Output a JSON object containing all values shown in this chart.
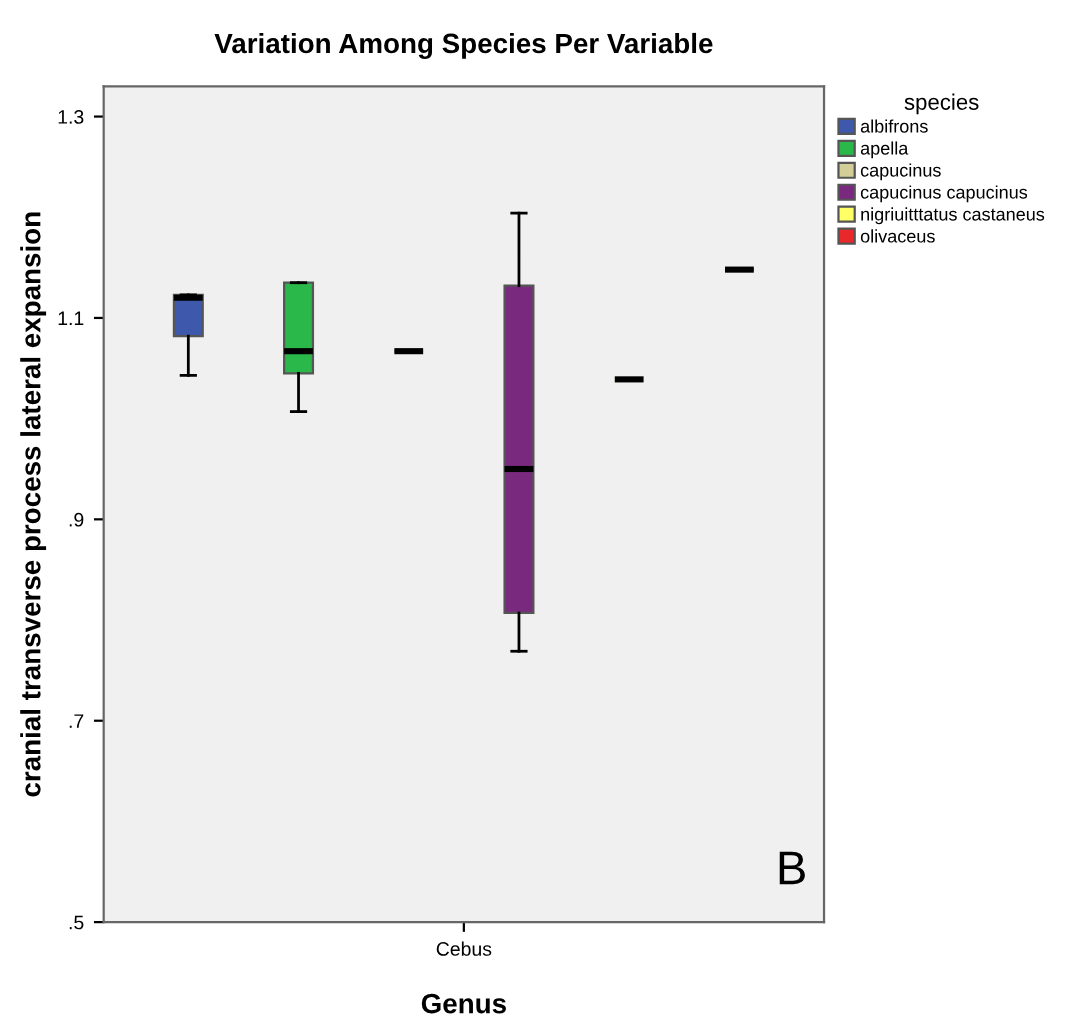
{
  "chart_data": {
    "type": "box",
    "title": "Variation Among Species Per Variable",
    "xlabel": "Genus",
    "ylabel": "cranial transverse process lateral expansion",
    "legend_title": "species",
    "categories": [
      "Cebus"
    ],
    "series": [
      {
        "name": "albifrons",
        "color": "#3e58ac",
        "boxes": [
          {
            "low": 1.043,
            "q1": 1.082,
            "median": 1.12,
            "q3": 1.123,
            "high": 1.123
          }
        ]
      },
      {
        "name": "apella",
        "color": "#2bb84a",
        "boxes": [
          {
            "low": 1.007,
            "q1": 1.045,
            "median": 1.067,
            "q3": 1.135,
            "high": 1.135
          }
        ]
      },
      {
        "name": "capucinus",
        "color": "#d3ce97",
        "boxes": [
          {
            "low": 1.067,
            "q1": 1.067,
            "median": 1.067,
            "q3": 1.067,
            "high": 1.067
          }
        ]
      },
      {
        "name": "capucinus capucinus",
        "color": "#7a2a7e",
        "boxes": [
          {
            "low": 0.769,
            "q1": 0.807,
            "median": 0.95,
            "q3": 1.132,
            "high": 1.204
          }
        ]
      },
      {
        "name": "nigriuitttatus castaneus",
        "color": "#ffff66",
        "boxes": [
          {
            "low": 1.039,
            "q1": 1.039,
            "median": 1.039,
            "q3": 1.039,
            "high": 1.039
          }
        ]
      },
      {
        "name": "olivaceus",
        "color": "#e8282a",
        "boxes": [
          {
            "low": 1.148,
            "q1": 1.148,
            "median": 1.148,
            "q3": 1.148,
            "high": 1.148
          }
        ]
      }
    ],
    "ylim": [
      0.5,
      1.33
    ],
    "yticks": [
      {
        "value": 0.5,
        "label": ".5"
      },
      {
        "value": 0.7,
        "label": ".7"
      },
      {
        "value": 0.9,
        "label": ".9"
      },
      {
        "value": 1.1,
        "label": "1.1"
      },
      {
        "value": 1.3,
        "label": "1.3"
      }
    ],
    "legend": "top right",
    "grid": false,
    "annotations": [
      "B"
    ]
  }
}
